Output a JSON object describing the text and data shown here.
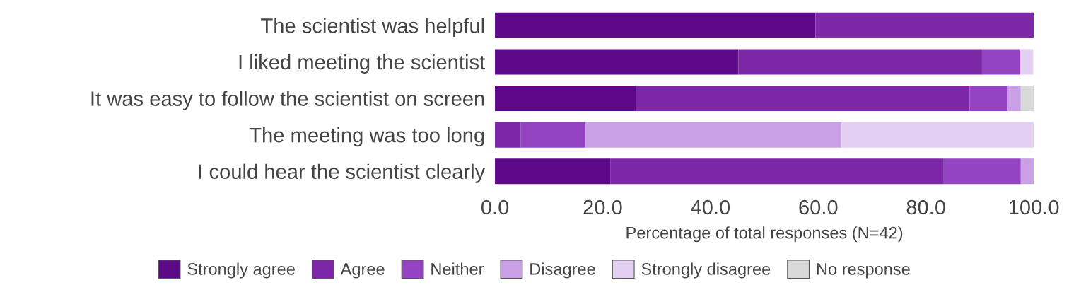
{
  "chart_data": {
    "type": "bar",
    "orientation": "horizontal",
    "stacked": true,
    "categories": [
      "The scientist was helpful",
      "I liked meeting the scientist",
      "It was easy to follow the scientist on screen",
      "The meeting was too long",
      "I could hear the scientist clearly"
    ],
    "series": [
      {
        "name": "Strongly agree",
        "color": "#5c0a87",
        "values": [
          59.5,
          45.2,
          26.2,
          0,
          21.4
        ]
      },
      {
        "name": "Agree",
        "color": "#7b27a6",
        "values": [
          40.5,
          45.2,
          61.9,
          4.8,
          61.9
        ]
      },
      {
        "name": "Neither",
        "color": "#9444c0",
        "values": [
          0,
          7.1,
          7.1,
          11.9,
          14.3
        ]
      },
      {
        "name": "Disagree",
        "color": "#c9a0e6",
        "values": [
          0,
          0,
          2.4,
          47.6,
          2.4
        ]
      },
      {
        "name": "Strongly disagree",
        "color": "#e3d0f1",
        "values": [
          0,
          2.4,
          0,
          35.7,
          0
        ]
      },
      {
        "name": "No response",
        "color": "#d9d9d9",
        "values": [
          0,
          0,
          2.4,
          0,
          0
        ]
      }
    ],
    "xlabel": "Percentage of total responses (N=42)",
    "xlim": [
      0,
      100
    ],
    "xticks": [
      {
        "value": 0,
        "label": "0.0"
      },
      {
        "value": 20,
        "label": "20.0"
      },
      {
        "value": 40,
        "label": "40.0"
      },
      {
        "value": 60,
        "label": "60.0"
      },
      {
        "value": 80,
        "label": "80.0"
      },
      {
        "value": 100,
        "label": "100.0"
      }
    ],
    "legend": "bottom",
    "grid": false
  }
}
